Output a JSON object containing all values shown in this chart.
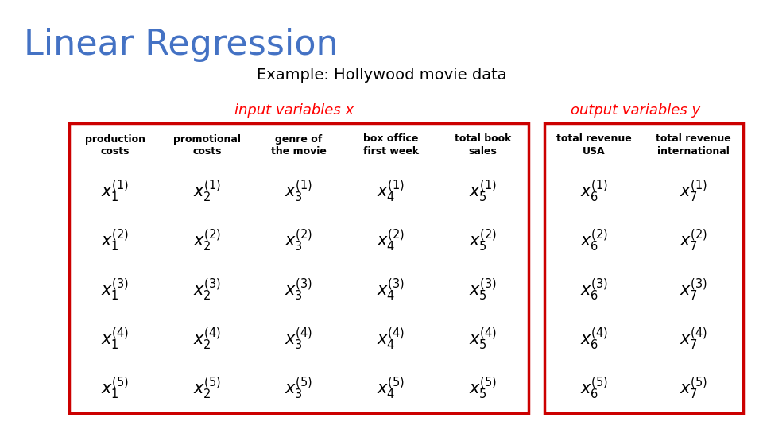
{
  "title": "Linear Regression",
  "title_color": "#4472C4",
  "subtitle": "Example: Hollywood movie data",
  "input_label": "input variables x",
  "output_label": "output variables y",
  "label_color": "#FF0000",
  "col_headers": [
    "production\ncosts",
    "promotional\ncosts",
    "genre of\nthe movie",
    "box office\nfirst week",
    "total book\nsales",
    "total revenue\nUSA",
    "total revenue\ninternational"
  ],
  "x_indices": [
    1,
    2,
    3,
    4,
    5,
    6,
    7
  ],
  "row_superscripts": [
    "(1)",
    "(2)",
    "(3)",
    "(4)",
    "(5)"
  ],
  "background_color": "#FFFFFF",
  "box_color": "#CC0000",
  "text_color": "#000000",
  "title_fontsize": 32,
  "subtitle_fontsize": 14,
  "label_fontsize": 13,
  "header_fontsize": 9,
  "math_fontsize": 15
}
